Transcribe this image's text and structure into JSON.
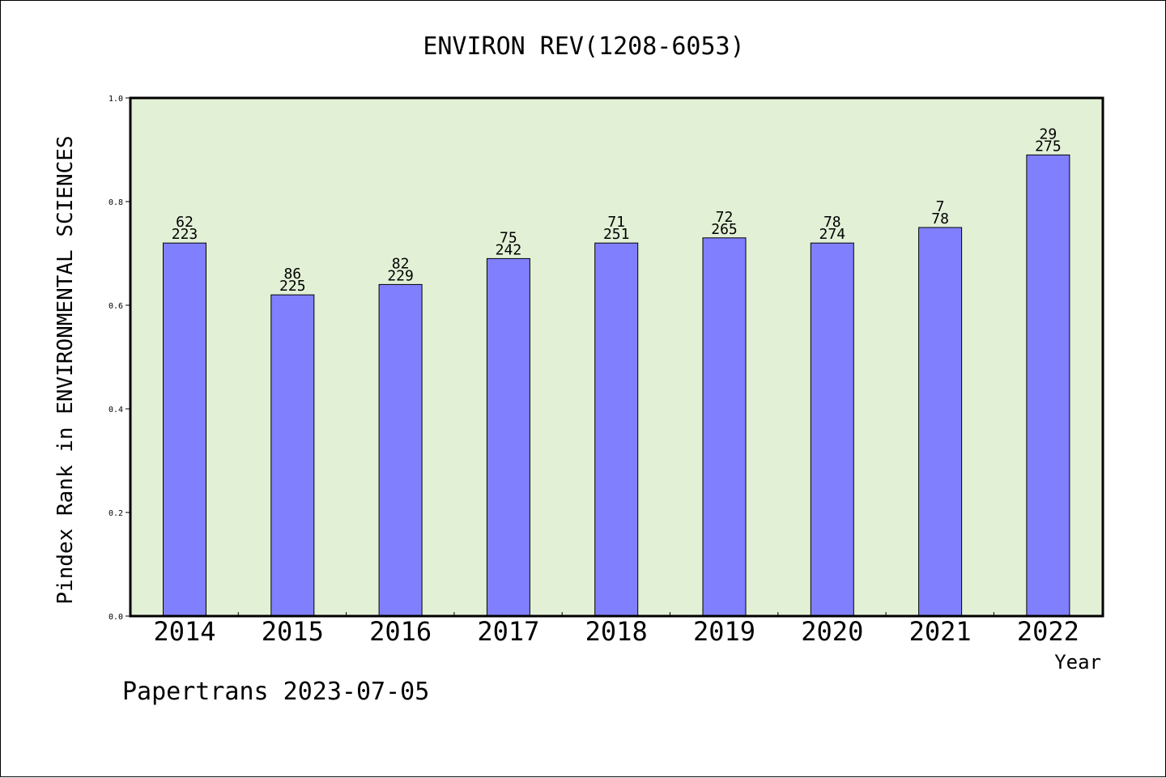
{
  "chart_data": {
    "type": "bar",
    "title": "ENVIRON REV(1208-6053)",
    "xlabel": "Year",
    "ylabel": "Pindex Rank in ENVIRONMENTAL SCIENCES",
    "ylim": [
      0.0,
      1.0
    ],
    "yticks": [
      "0.0",
      "0.2",
      "0.4",
      "0.6",
      "0.8",
      "1.0"
    ],
    "categories": [
      "2014",
      "2015",
      "2016",
      "2017",
      "2018",
      "2019",
      "2020",
      "2021",
      "2022"
    ],
    "values": [
      0.72,
      0.62,
      0.64,
      0.69,
      0.72,
      0.73,
      0.72,
      0.75,
      0.89
    ],
    "labels_top": [
      "62",
      "86",
      "82",
      "75",
      "71",
      "72",
      "78",
      "7",
      "29"
    ],
    "labels_bottom": [
      "223",
      "225",
      "229",
      "242",
      "251",
      "265",
      "274",
      "78",
      "275"
    ],
    "bar_color": "#8080ff",
    "plot_background": "#e2f0d6",
    "grid": false,
    "legend": "none"
  },
  "footer": "Papertrans 2023-07-05"
}
